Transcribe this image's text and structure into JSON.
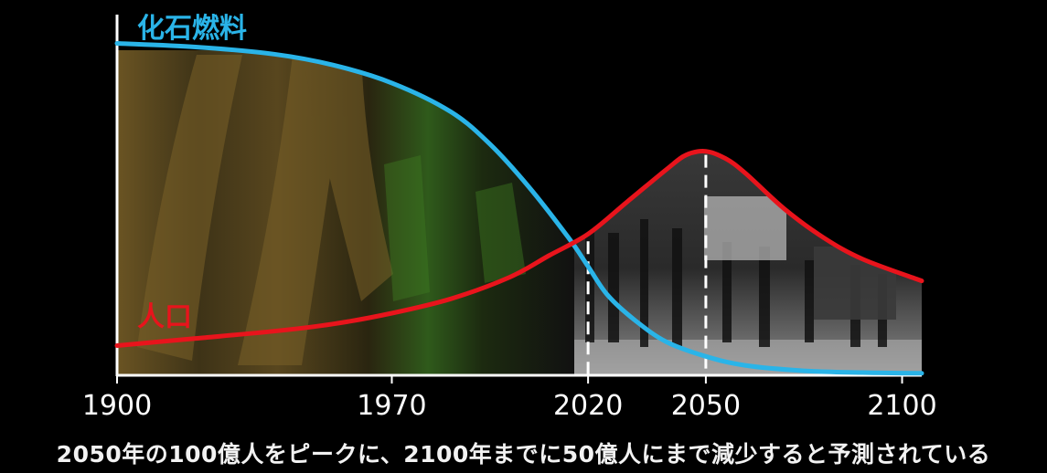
{
  "chart_data": {
    "type": "line",
    "x_ticks": [
      "1900",
      "1970",
      "2020",
      "2050",
      "2100"
    ],
    "markers": [
      "2020",
      "2050"
    ],
    "xlim": [
      1900,
      2105
    ],
    "series": [
      {
        "name": "化石燃料",
        "color": "#2ab4e8",
        "x": [
          1900,
          1920,
          1940,
          1955,
          1970,
          1985,
          1995,
          2005,
          2015,
          2020,
          2025,
          2032,
          2040,
          2050,
          2060,
          2075,
          2090,
          2105
        ],
        "y": [
          0.92,
          0.91,
          0.89,
          0.86,
          0.81,
          0.73,
          0.64,
          0.52,
          0.38,
          0.3,
          0.22,
          0.15,
          0.09,
          0.05,
          0.025,
          0.01,
          0.005,
          0.003
        ]
      },
      {
        "name": "人口",
        "color": "#e8141c",
        "x": [
          1900,
          1920,
          1940,
          1955,
          1970,
          1985,
          2000,
          2010,
          2020,
          2030,
          2040,
          2045,
          2050,
          2055,
          2060,
          2070,
          2080,
          2090,
          2105
        ],
        "y": [
          0.08,
          0.1,
          0.12,
          0.14,
          0.17,
          0.21,
          0.27,
          0.33,
          0.39,
          0.48,
          0.57,
          0.61,
          0.62,
          0.6,
          0.56,
          0.46,
          0.38,
          0.32,
          0.26
        ]
      }
    ]
  },
  "subtitle": "2050年の100億人をピークに、2100年までに50億人にまで減少すると予測されている"
}
